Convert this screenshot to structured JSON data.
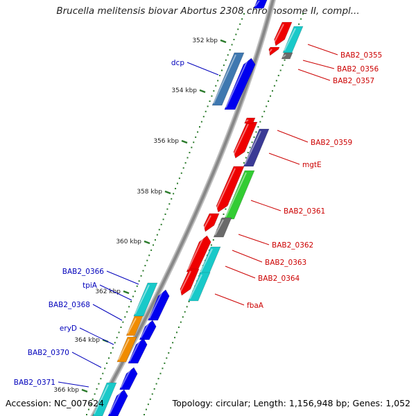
{
  "title": "Brucella melitensis biovar Abortus 2308 chromosome II, compl...",
  "accession": "Accession: NC_007624",
  "topology": "Topology: circular; Length: 1,156,948 bp; Genes: 1,052",
  "colors": {
    "backbone": "#888888",
    "tick": "#2a7a2a",
    "forward_label": "#cc0000",
    "reverse_label": "#0000bb",
    "red": "#ee0000",
    "blue": "#0000ee",
    "cyan": "#19c9c9",
    "steel": "#3f78b0",
    "darkblue": "#3a3a95",
    "green": "#33cc33",
    "gray": "#6a6a6a",
    "orange": "#f08c00"
  },
  "scale_labels": [
    "352 kbp",
    "354 kbp",
    "356 kbp",
    "358 kbp",
    "360 kbp",
    "362 kbp",
    "364 kbp",
    "366 kbp"
  ],
  "gene_labels": {
    "forward": [
      "BAB2_0355",
      "BAB2_0356",
      "BAB2_0357",
      "BAB2_0359",
      "mgtE",
      "BAB2_0361",
      "BAB2_0362",
      "BAB2_0363",
      "BAB2_0364",
      "fbaA"
    ],
    "reverse": [
      "dcp",
      "BAB2_0366",
      "tpiA",
      "BAB2_0368",
      "eryD",
      "BAB2_0370",
      "BAB2_0371"
    ]
  }
}
